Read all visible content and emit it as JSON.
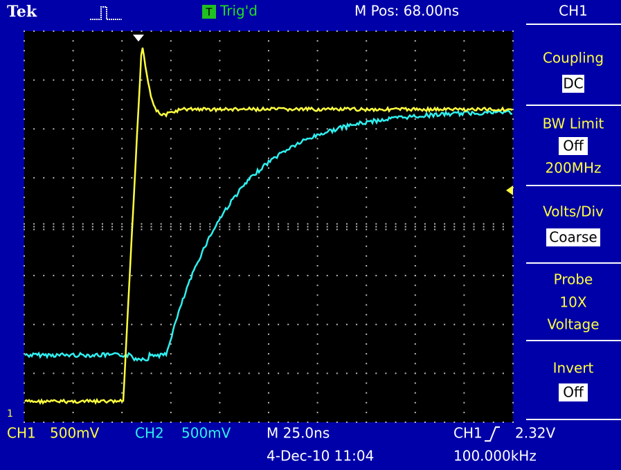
{
  "header": {
    "brand": "Tek",
    "trigger_icon": "T",
    "trigger_status": "Trig'd",
    "position": "M Pos: 68.00ns",
    "channel": "CH1"
  },
  "menu": [
    {
      "label": "Coupling",
      "value": "DC"
    },
    {
      "label": "BW Limit",
      "value": "Off",
      "extra": "200MHz"
    },
    {
      "label": "Volts/Div",
      "value": "Coarse"
    },
    {
      "label": "Probe",
      "lines": [
        "10X",
        "Voltage"
      ]
    },
    {
      "label": "Invert",
      "value": "Off"
    }
  ],
  "footer": {
    "ch1": "CH1",
    "ch1_scale": "500mV",
    "ch2": "CH2",
    "ch2_scale": "500mV",
    "timebase": "M 25.0ns",
    "trigger_source": "CH1",
    "trigger_level": "2.32V",
    "date": "4-Dec-10 11:04",
    "frequency": "100.000kHz"
  }
}
